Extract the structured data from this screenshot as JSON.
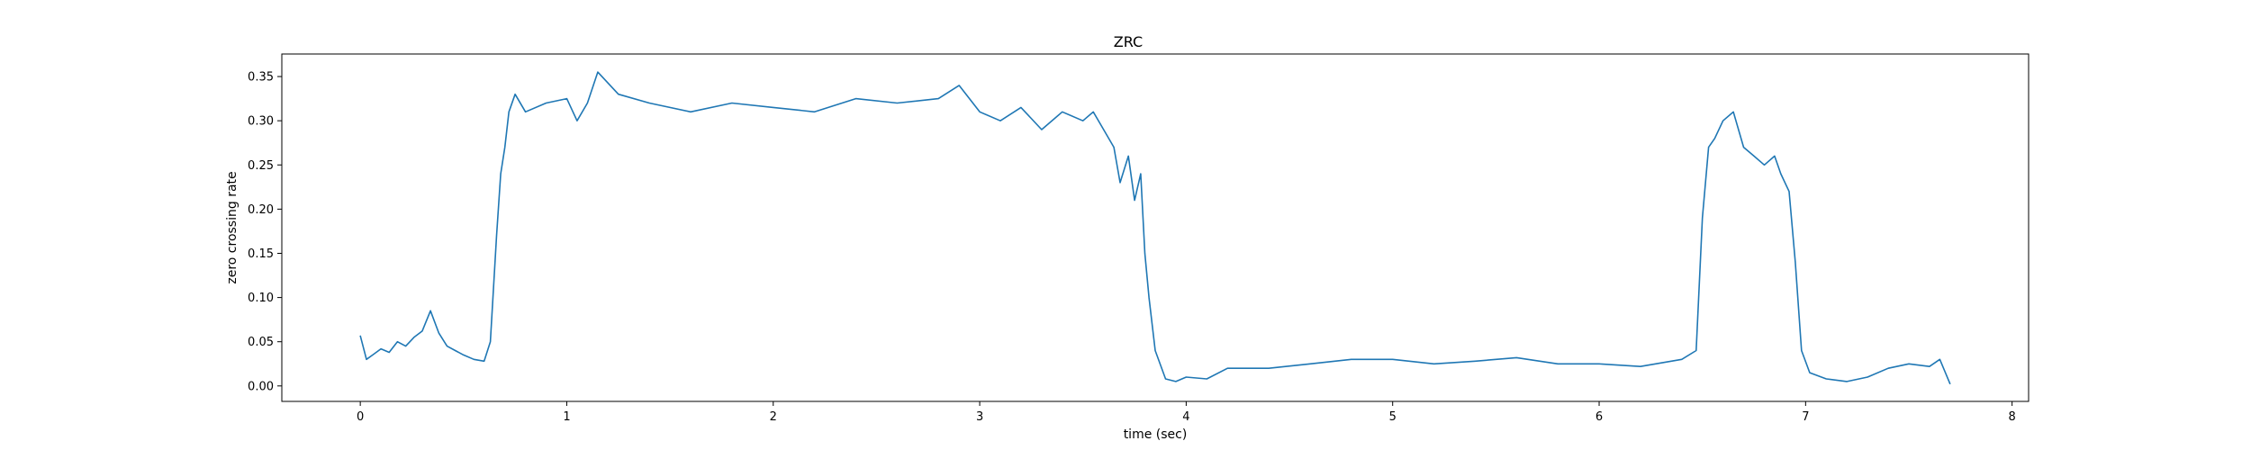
{
  "chart_data": {
    "type": "line",
    "title": "ZRC",
    "xlabel": "time (sec)",
    "ylabel": "zero crossing rate",
    "xlim": [
      -0.38,
      8.08
    ],
    "ylim": [
      -0.0175,
      0.3755
    ],
    "x_ticks": [
      0,
      1,
      2,
      3,
      4,
      5,
      6,
      7,
      8
    ],
    "x_tick_labels": [
      "0",
      "1",
      "2",
      "3",
      "4",
      "5",
      "6",
      "7",
      "8"
    ],
    "y_ticks": [
      0.0,
      0.05,
      0.1,
      0.15,
      0.2,
      0.25,
      0.3,
      0.35
    ],
    "y_tick_labels": [
      "0.00",
      "0.05",
      "0.10",
      "0.15",
      "0.20",
      "0.25",
      "0.30",
      "0.35"
    ],
    "grid": false,
    "legend": "none",
    "series": [
      {
        "color": "#1f77b4",
        "x": [
          0.0,
          0.03,
          0.06,
          0.1,
          0.14,
          0.18,
          0.22,
          0.26,
          0.3,
          0.34,
          0.38,
          0.42,
          0.46,
          0.5,
          0.55,
          0.6,
          0.63,
          0.66,
          0.68,
          0.7,
          0.72,
          0.75,
          0.8,
          0.9,
          1.0,
          1.05,
          1.1,
          1.15,
          1.25,
          1.4,
          1.6,
          1.8,
          2.0,
          2.2,
          2.4,
          2.6,
          2.8,
          2.9,
          3.0,
          3.1,
          3.2,
          3.3,
          3.4,
          3.5,
          3.55,
          3.6,
          3.65,
          3.68,
          3.72,
          3.75,
          3.78,
          3.8,
          3.82,
          3.85,
          3.9,
          3.95,
          4.0,
          4.1,
          4.2,
          4.4,
          4.6,
          4.8,
          5.0,
          5.2,
          5.4,
          5.6,
          5.8,
          6.0,
          6.2,
          6.4,
          6.47,
          6.5,
          6.53,
          6.56,
          6.6,
          6.65,
          6.7,
          6.75,
          6.8,
          6.85,
          6.88,
          6.92,
          6.95,
          6.98,
          7.02,
          7.1,
          7.2,
          7.3,
          7.4,
          7.5,
          7.6,
          7.65,
          7.7
        ],
        "y": [
          0.057,
          0.03,
          0.035,
          0.042,
          0.038,
          0.05,
          0.045,
          0.055,
          0.062,
          0.085,
          0.06,
          0.045,
          0.04,
          0.035,
          0.03,
          0.028,
          0.05,
          0.17,
          0.24,
          0.27,
          0.31,
          0.33,
          0.31,
          0.32,
          0.325,
          0.3,
          0.32,
          0.355,
          0.33,
          0.32,
          0.31,
          0.32,
          0.315,
          0.31,
          0.325,
          0.32,
          0.325,
          0.34,
          0.31,
          0.3,
          0.315,
          0.29,
          0.31,
          0.3,
          0.31,
          0.29,
          0.27,
          0.23,
          0.26,
          0.21,
          0.24,
          0.15,
          0.1,
          0.04,
          0.008,
          0.005,
          0.01,
          0.008,
          0.02,
          0.02,
          0.025,
          0.03,
          0.03,
          0.025,
          0.028,
          0.032,
          0.025,
          0.025,
          0.022,
          0.03,
          0.04,
          0.19,
          0.27,
          0.28,
          0.3,
          0.31,
          0.27,
          0.26,
          0.25,
          0.26,
          0.24,
          0.22,
          0.14,
          0.04,
          0.015,
          0.008,
          0.005,
          0.01,
          0.02,
          0.025,
          0.022,
          0.03,
          0.002
        ]
      }
    ]
  }
}
